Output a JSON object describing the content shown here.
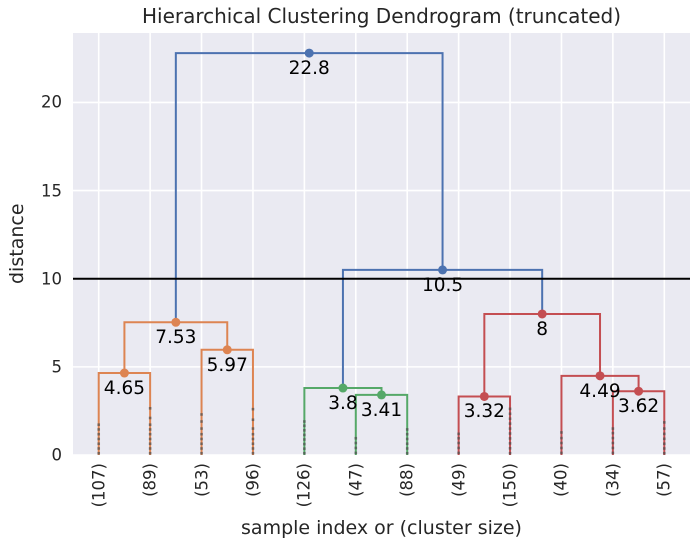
{
  "chart_data": {
    "type": "dendrogram",
    "title": "Hierarchical Clustering Dendrogram (truncated)",
    "xlabel": "sample index or (cluster size)",
    "ylabel": "distance",
    "ylim": [
      0,
      23.94
    ],
    "yticks": [
      0,
      5,
      10,
      15,
      20
    ],
    "grid": true,
    "legend": "none",
    "background": "#EAEAF2",
    "grid_color": "#FFFFFF",
    "text_color": "#262626",
    "annotation_color": "#000000",
    "palette": {
      "blue": "#4C72B0",
      "orange": "#DD8452",
      "green": "#55A868",
      "red": "#C44E52"
    },
    "threshold_line": {
      "value": 10.0,
      "color": "#000000"
    },
    "contracted_marker_color": "#4a4a4a",
    "leaves": [
      {
        "label": "(107)",
        "cluster": "orange",
        "contracted_merge_heights": [
          0.1,
          0.37,
          0.64,
          0.91,
          1.18,
          1.45,
          1.72
        ]
      },
      {
        "label": "(89)",
        "cluster": "orange",
        "contracted_merge_heights": [
          0.1,
          0.37,
          0.64,
          0.91,
          1.18,
          1.45,
          1.72,
          2.1,
          2.65
        ]
      },
      {
        "label": "(53)",
        "cluster": "orange",
        "contracted_merge_heights": [
          0.1,
          0.37,
          0.64,
          0.91,
          1.18,
          1.5,
          1.9,
          2.3
        ]
      },
      {
        "label": "(96)",
        "cluster": "orange",
        "contracted_merge_heights": [
          0.1,
          0.37,
          0.64,
          0.91,
          1.18,
          1.5,
          2.0,
          2.6
        ]
      },
      {
        "label": "(126)",
        "cluster": "green",
        "contracted_merge_heights": [
          0.1,
          0.36,
          0.62,
          0.88,
          1.14,
          1.4,
          1.66,
          1.9
        ]
      },
      {
        "label": "(47)",
        "cluster": "green",
        "contracted_merge_heights": [
          0.12,
          0.4,
          0.68,
          0.95
        ]
      },
      {
        "label": "(88)",
        "cluster": "green",
        "contracted_merge_heights": [
          0.1,
          0.37,
          0.64,
          0.91,
          1.18,
          1.45
        ]
      },
      {
        "label": "(49)",
        "cluster": "red",
        "contracted_merge_heights": [
          0.12,
          0.4,
          0.68,
          0.95,
          1.2
        ]
      },
      {
        "label": "(150)",
        "cluster": "red",
        "contracted_merge_heights": [
          0.1,
          0.38,
          0.66,
          0.94,
          1.22,
          1.5,
          1.78,
          2.06,
          2.34,
          2.62
        ]
      },
      {
        "label": "(40)",
        "cluster": "red",
        "contracted_merge_heights": [
          0.12,
          0.4,
          0.68,
          0.96,
          1.28
        ]
      },
      {
        "label": "(34)",
        "cluster": "red",
        "contracted_merge_heights": [
          0.12,
          0.4,
          0.68,
          0.96,
          1.24,
          1.5
        ]
      },
      {
        "label": "(57)",
        "cluster": "red",
        "contracted_merge_heights": [
          0.1,
          0.37,
          0.64,
          0.92,
          1.2,
          1.5,
          1.85
        ]
      }
    ],
    "links": [
      {
        "id": "o1",
        "color": "orange",
        "left": "leaf:0",
        "right": "leaf:1",
        "height": 4.65,
        "label": "4.65"
      },
      {
        "id": "o2",
        "color": "orange",
        "left": "leaf:2",
        "right": "leaf:3",
        "height": 5.97,
        "label": "5.97"
      },
      {
        "id": "o3",
        "color": "orange",
        "left": "link:o1",
        "right": "link:o2",
        "height": 7.53,
        "label": "7.53"
      },
      {
        "id": "g1",
        "color": "green",
        "left": "leaf:5",
        "right": "leaf:6",
        "height": 3.41,
        "label": "3.41"
      },
      {
        "id": "g2",
        "color": "green",
        "left": "leaf:4",
        "right": "link:g1",
        "height": 3.8,
        "label": "3.8"
      },
      {
        "id": "r1",
        "color": "red",
        "left": "leaf:7",
        "right": "leaf:8",
        "height": 3.32,
        "label": "3.32"
      },
      {
        "id": "r2",
        "color": "red",
        "left": "leaf:10",
        "right": "leaf:11",
        "height": 3.62,
        "label": "3.62"
      },
      {
        "id": "r3",
        "color": "red",
        "left": "leaf:9",
        "right": "link:r2",
        "height": 4.49,
        "label": "4.49"
      },
      {
        "id": "r4",
        "color": "red",
        "left": "link:r1",
        "right": "link:r3",
        "height": 8,
        "label": "8"
      },
      {
        "id": "b1",
        "color": "blue",
        "left": "link:g2",
        "right": "link:r4",
        "height": 10.5,
        "label": "10.5"
      },
      {
        "id": "b2",
        "color": "blue",
        "left": "link:o3",
        "right": "link:b1",
        "height": 22.8,
        "label": "22.8"
      }
    ]
  }
}
